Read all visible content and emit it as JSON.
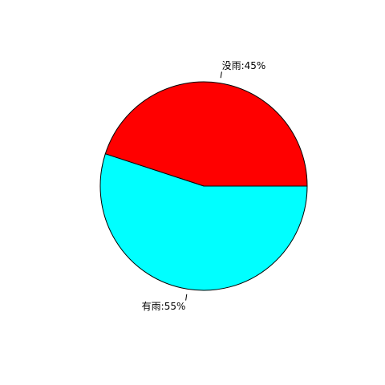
{
  "chart_data": {
    "type": "pie",
    "title": "",
    "direction": "counterclockwise",
    "start_angle_deg": 0,
    "slices": [
      {
        "label": "没雨:45%",
        "value": 45,
        "color": "#FF0000"
      },
      {
        "label": "有雨:55%",
        "value": 55,
        "color": "#00FFFF"
      }
    ]
  }
}
